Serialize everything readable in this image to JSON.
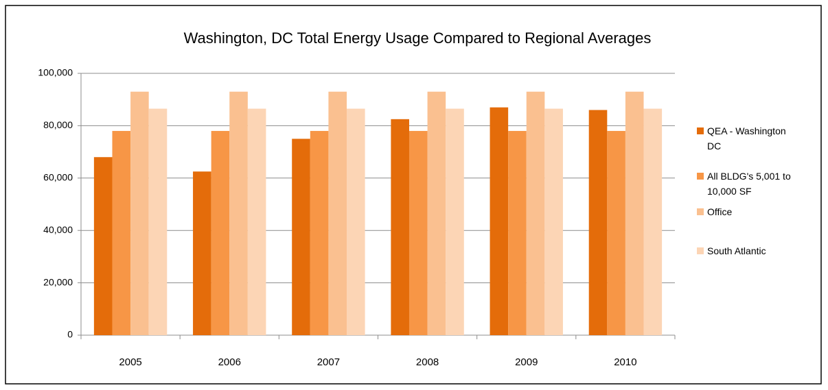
{
  "chart_data": {
    "type": "bar",
    "title": "Washington, DC Total Energy Usage Compared to Regional Averages",
    "categories": [
      "2005",
      "2006",
      "2007",
      "2008",
      "2009",
      "2010"
    ],
    "series": [
      {
        "name": "QEA - Washington DC",
        "color": "#e46c0a",
        "values": [
          68000,
          62500,
          75000,
          82500,
          87000,
          86000
        ]
      },
      {
        "name": "All BLDG's 5,001 to 10,000 SF",
        "color": "#f79646",
        "values": [
          78000,
          78000,
          78000,
          78000,
          78000,
          78000
        ]
      },
      {
        "name": "Office",
        "color": "#fac090",
        "values": [
          93000,
          93000,
          93000,
          93000,
          93000,
          93000
        ]
      },
      {
        "name": "South Atlantic",
        "color": "#fcd5b5",
        "values": [
          86500,
          86500,
          86500,
          86500,
          86500,
          86500
        ]
      }
    ],
    "ylim": [
      0,
      100000
    ],
    "yticks": [
      0,
      {
        "value": 20000,
        "label": "20,000"
      },
      {
        "value": 40000,
        "label": "40,000"
      },
      {
        "value": 60000,
        "label": "60,000"
      },
      {
        "value": 80000,
        "label": "80,000"
      },
      {
        "value": 100000,
        "label": "100,000"
      }
    ],
    "grid": true,
    "legend": "right"
  }
}
